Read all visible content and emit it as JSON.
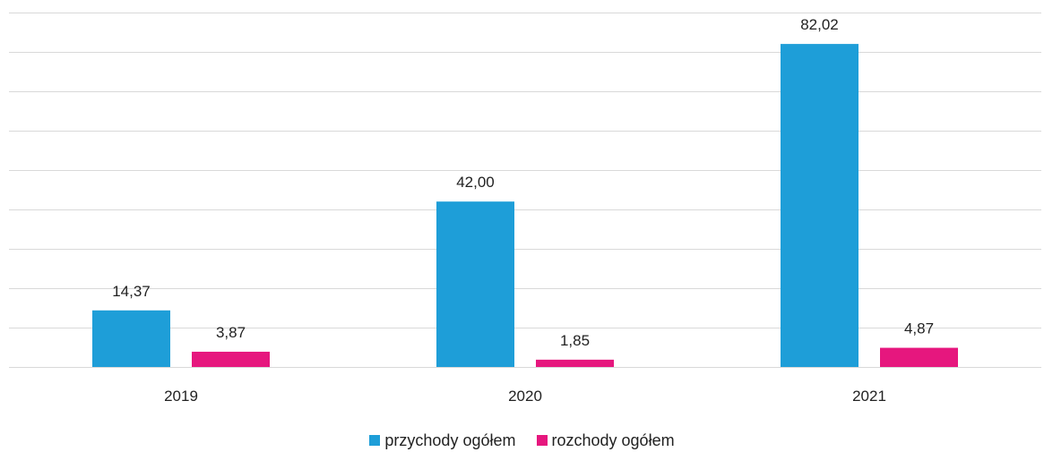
{
  "chart_data": {
    "type": "bar",
    "categories": [
      "2019",
      "2020",
      "2021"
    ],
    "series": [
      {
        "name": "przychody ogółem",
        "color": "#1e9ed8",
        "values": [
          14.37,
          42.0,
          82.02
        ],
        "labels": [
          "14,37",
          "42,00",
          "82,02"
        ]
      },
      {
        "name": "rozchody ogółem",
        "color": "#e6177e",
        "values": [
          3.87,
          1.85,
          4.87
        ],
        "labels": [
          "3,87",
          "1,85",
          "4,87"
        ]
      }
    ],
    "ylim": [
      0,
      90
    ],
    "grid_step": 10,
    "grid": true,
    "y_axis_labels": false,
    "legend_position": "bottom"
  }
}
